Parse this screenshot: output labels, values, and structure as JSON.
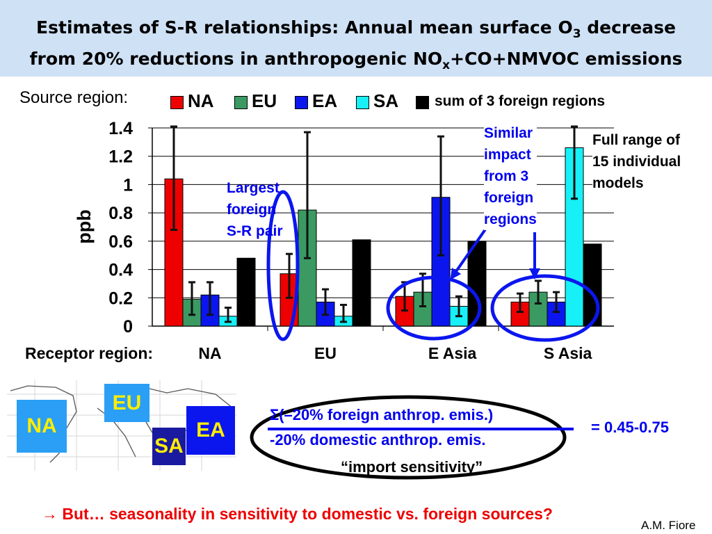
{
  "title": {
    "line1_pre": "Estimates of S-R relationships: Annual mean surface O",
    "line1_sub": "3",
    "line1_post": " decrease",
    "line2_pre": "from 20% reductions in anthropogenic NO",
    "line2_sub": "x",
    "line2_post": "+CO+NMVOC emissions"
  },
  "legend": {
    "source_label": "Source region:",
    "items": [
      {
        "label": "NA",
        "color": "#ee0000"
      },
      {
        "label": "EU",
        "color": "#3a9a62"
      },
      {
        "label": "EA",
        "color": "#0b16ee"
      },
      {
        "label": "SA",
        "color": "#17f0f7"
      }
    ],
    "sum_label": "sum of 3 foreign regions",
    "sum_color": "#000000"
  },
  "chart_data": {
    "type": "bar",
    "ylabel": "ppb",
    "xlabel": "Receptor region:",
    "categories": [
      "NA",
      "EU",
      "E Asia",
      "S Asia"
    ],
    "ylim": [
      0,
      1.4
    ],
    "yticks": [
      "0",
      "0.2",
      "0.4",
      "0.6",
      "0.8",
      "1",
      "1.2",
      "1.4"
    ],
    "grid": true,
    "series": [
      {
        "name": "NA",
        "color": "#ee0000",
        "values": [
          1.04,
          0.37,
          0.21,
          0.17
        ],
        "range": [
          [
            0.68,
            1.41
          ],
          [
            0.2,
            0.51
          ],
          [
            0.11,
            0.31
          ],
          [
            0.1,
            0.23
          ]
        ]
      },
      {
        "name": "EU",
        "color": "#3a9a62",
        "values": [
          0.19,
          0.82,
          0.24,
          0.24
        ],
        "range": [
          [
            0.08,
            0.31
          ],
          [
            0.48,
            1.37
          ],
          [
            0.14,
            0.37
          ],
          [
            0.16,
            0.32
          ]
        ]
      },
      {
        "name": "EA",
        "color": "#0b16ee",
        "values": [
          0.22,
          0.17,
          0.91,
          0.17
        ],
        "range": [
          [
            0.08,
            0.31
          ],
          [
            0.08,
            0.26
          ],
          [
            0.5,
            1.34
          ],
          [
            0.1,
            0.24
          ]
        ]
      },
      {
        "name": "SA",
        "color": "#17f0f7",
        "values": [
          0.07,
          0.07,
          0.14,
          1.26
        ],
        "range": [
          [
            0.03,
            0.13
          ],
          [
            0.03,
            0.15
          ],
          [
            0.07,
            0.21
          ],
          [
            0.9,
            1.41
          ]
        ]
      },
      {
        "name": "sum of 3 foreign regions",
        "color": "#000000",
        "values": [
          0.48,
          0.61,
          0.6,
          0.58
        ]
      }
    ]
  },
  "annotations": {
    "largest": [
      "Largest",
      "foreign",
      "S-R pair"
    ],
    "similar": [
      "Similar",
      "impact",
      "from 3",
      "foreign",
      "regions"
    ],
    "full_range": [
      "Full range of",
      "15 individual",
      "models"
    ]
  },
  "map": {
    "regions": [
      {
        "label": "NA",
        "color": "#2a9ff5"
      },
      {
        "label": "EU",
        "color": "#2a9ff5"
      },
      {
        "label": "EA",
        "color": "#0b16ee"
      },
      {
        "label": "SA",
        "color": "#1a1aa0"
      }
    ]
  },
  "formula": {
    "numerator": "Σ(–20% foreign anthrop. emis.)",
    "denominator": "-20% domestic anthrop. emis.",
    "result": "= 0.45-0.75",
    "caption": "“import sensitivity”"
  },
  "footer": {
    "arrow": "→",
    "question": " But… seasonality in sensitivity to domestic vs. foreign sources?",
    "credit": "A.M. Fiore"
  }
}
